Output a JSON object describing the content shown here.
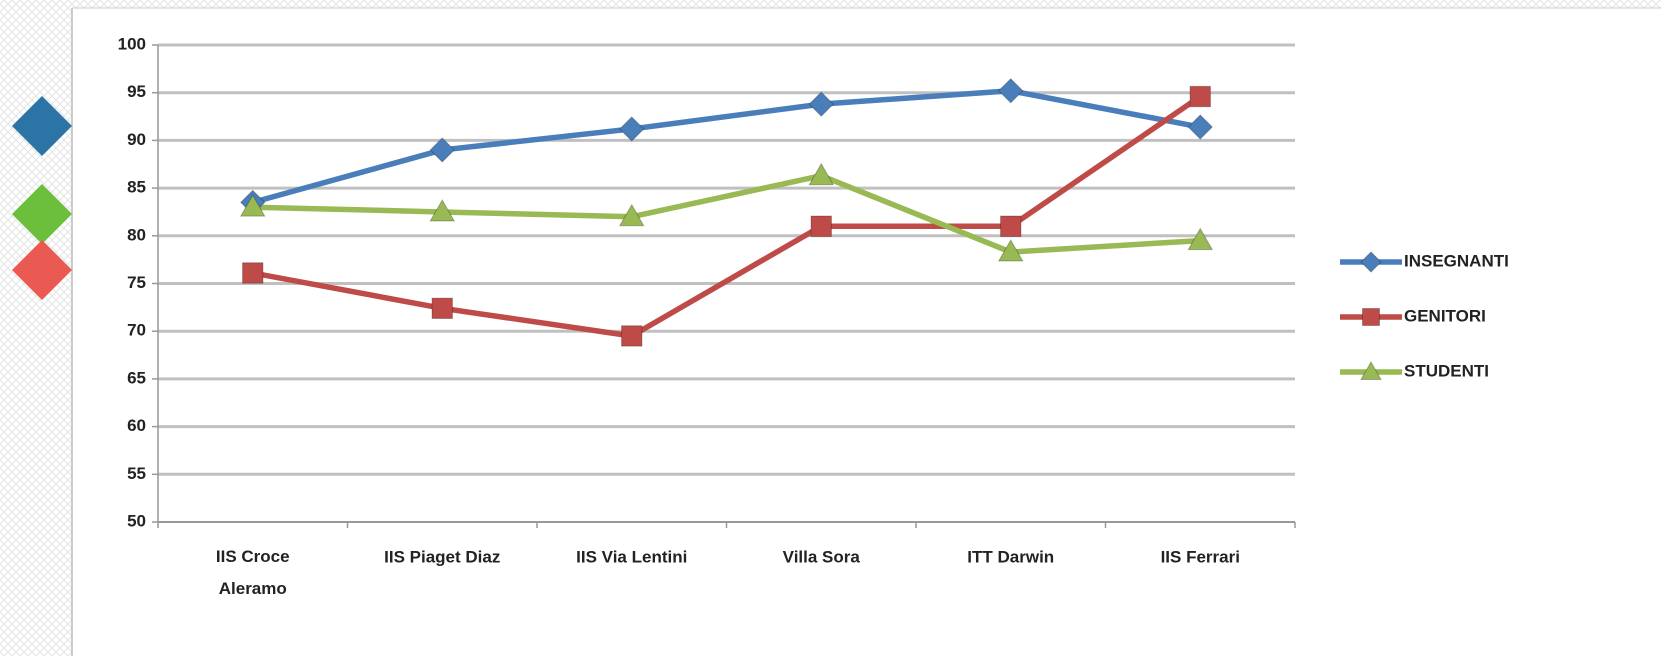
{
  "chart_data": {
    "type": "line",
    "categories": [
      "IIS Croce\nAleramo",
      "IIS Piaget Diaz",
      "IIS Via Lentini",
      "Villa Sora",
      "ITT Darwin",
      "IIS Ferrari"
    ],
    "series": [
      {
        "name": "INSEGNANTI",
        "color": "#4a7ebb",
        "marker": "diamond",
        "values": [
          83.5,
          89,
          91.2,
          93.8,
          95.2,
          91.4
        ]
      },
      {
        "name": "GENITORI",
        "color": "#be4b48",
        "marker": "square",
        "values": [
          76.1,
          72.4,
          69.5,
          81,
          81,
          94.6
        ]
      },
      {
        "name": "STUDENTI",
        "color": "#98b954",
        "marker": "triangle",
        "values": [
          83,
          82.5,
          82,
          86.3,
          78.3,
          79.5
        ]
      }
    ],
    "ylim": [
      50,
      100
    ],
    "yticks": [
      50,
      55,
      60,
      65,
      70,
      75,
      80,
      85,
      90,
      95,
      100
    ],
    "grid": true,
    "legend": "right"
  }
}
